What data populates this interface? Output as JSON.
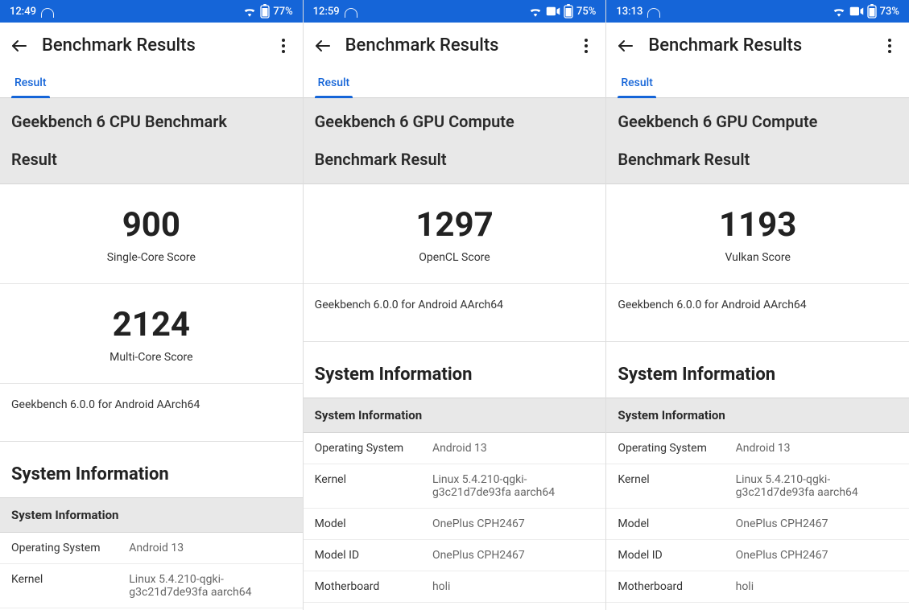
{
  "colors": {
    "brand": "#1565d8",
    "section_bg": "#e8e8e8",
    "border": "#d5d5d5"
  },
  "screens": [
    {
      "statusbar": {
        "time": "12:49",
        "battery": "77%",
        "show_record": false
      },
      "appbar": {
        "title": "Benchmark Results"
      },
      "tab": {
        "label": "Result"
      },
      "benchmark_title": "Geekbench 6 CPU Benchmark",
      "result_label": "Result",
      "scores": [
        {
          "value": "900",
          "label": "Single-Core Score"
        },
        {
          "value": "2124",
          "label": "Multi-Core Score"
        }
      ],
      "version": "Geekbench 6.0.0 for Android AArch64",
      "sysinfo_heading": "System Information",
      "sysinfo_subheader": "System Information",
      "rows": [
        {
          "label": "Operating System",
          "value": "Android 13"
        },
        {
          "label": "Kernel",
          "value": "Linux 5.4.210-qgki-g3c21d7de93fa aarch64"
        }
      ]
    },
    {
      "statusbar": {
        "time": "12:59",
        "battery": "75%",
        "show_record": true
      },
      "appbar": {
        "title": "Benchmark Results"
      },
      "tab": {
        "label": "Result"
      },
      "benchmark_title": "Geekbench 6 GPU Compute",
      "result_label": "Benchmark Result",
      "scores": [
        {
          "value": "1297",
          "label": "OpenCL Score"
        }
      ],
      "version": "Geekbench 6.0.0 for Android AArch64",
      "sysinfo_heading": "System Information",
      "sysinfo_subheader": "System Information",
      "rows": [
        {
          "label": "Operating System",
          "value": "Android 13"
        },
        {
          "label": "Kernel",
          "value": "Linux 5.4.210-qgki-g3c21d7de93fa aarch64"
        },
        {
          "label": "Model",
          "value": "OnePlus CPH2467"
        },
        {
          "label": "Model ID",
          "value": "OnePlus CPH2467"
        },
        {
          "label": "Motherboard",
          "value": "holi"
        }
      ]
    },
    {
      "statusbar": {
        "time": "13:13",
        "battery": "73%",
        "show_record": true
      },
      "appbar": {
        "title": "Benchmark Results"
      },
      "tab": {
        "label": "Result"
      },
      "benchmark_title": "Geekbench 6 GPU Compute",
      "result_label": "Benchmark Result",
      "scores": [
        {
          "value": "1193",
          "label": "Vulkan Score"
        }
      ],
      "version": "Geekbench 6.0.0 for Android AArch64",
      "sysinfo_heading": "System Information",
      "sysinfo_subheader": "System Information",
      "rows": [
        {
          "label": "Operating System",
          "value": "Android 13"
        },
        {
          "label": "Kernel",
          "value": "Linux 5.4.210-qgki-g3c21d7de93fa aarch64"
        },
        {
          "label": "Model",
          "value": "OnePlus CPH2467"
        },
        {
          "label": "Model ID",
          "value": "OnePlus CPH2467"
        },
        {
          "label": "Motherboard",
          "value": "holi"
        }
      ]
    }
  ]
}
